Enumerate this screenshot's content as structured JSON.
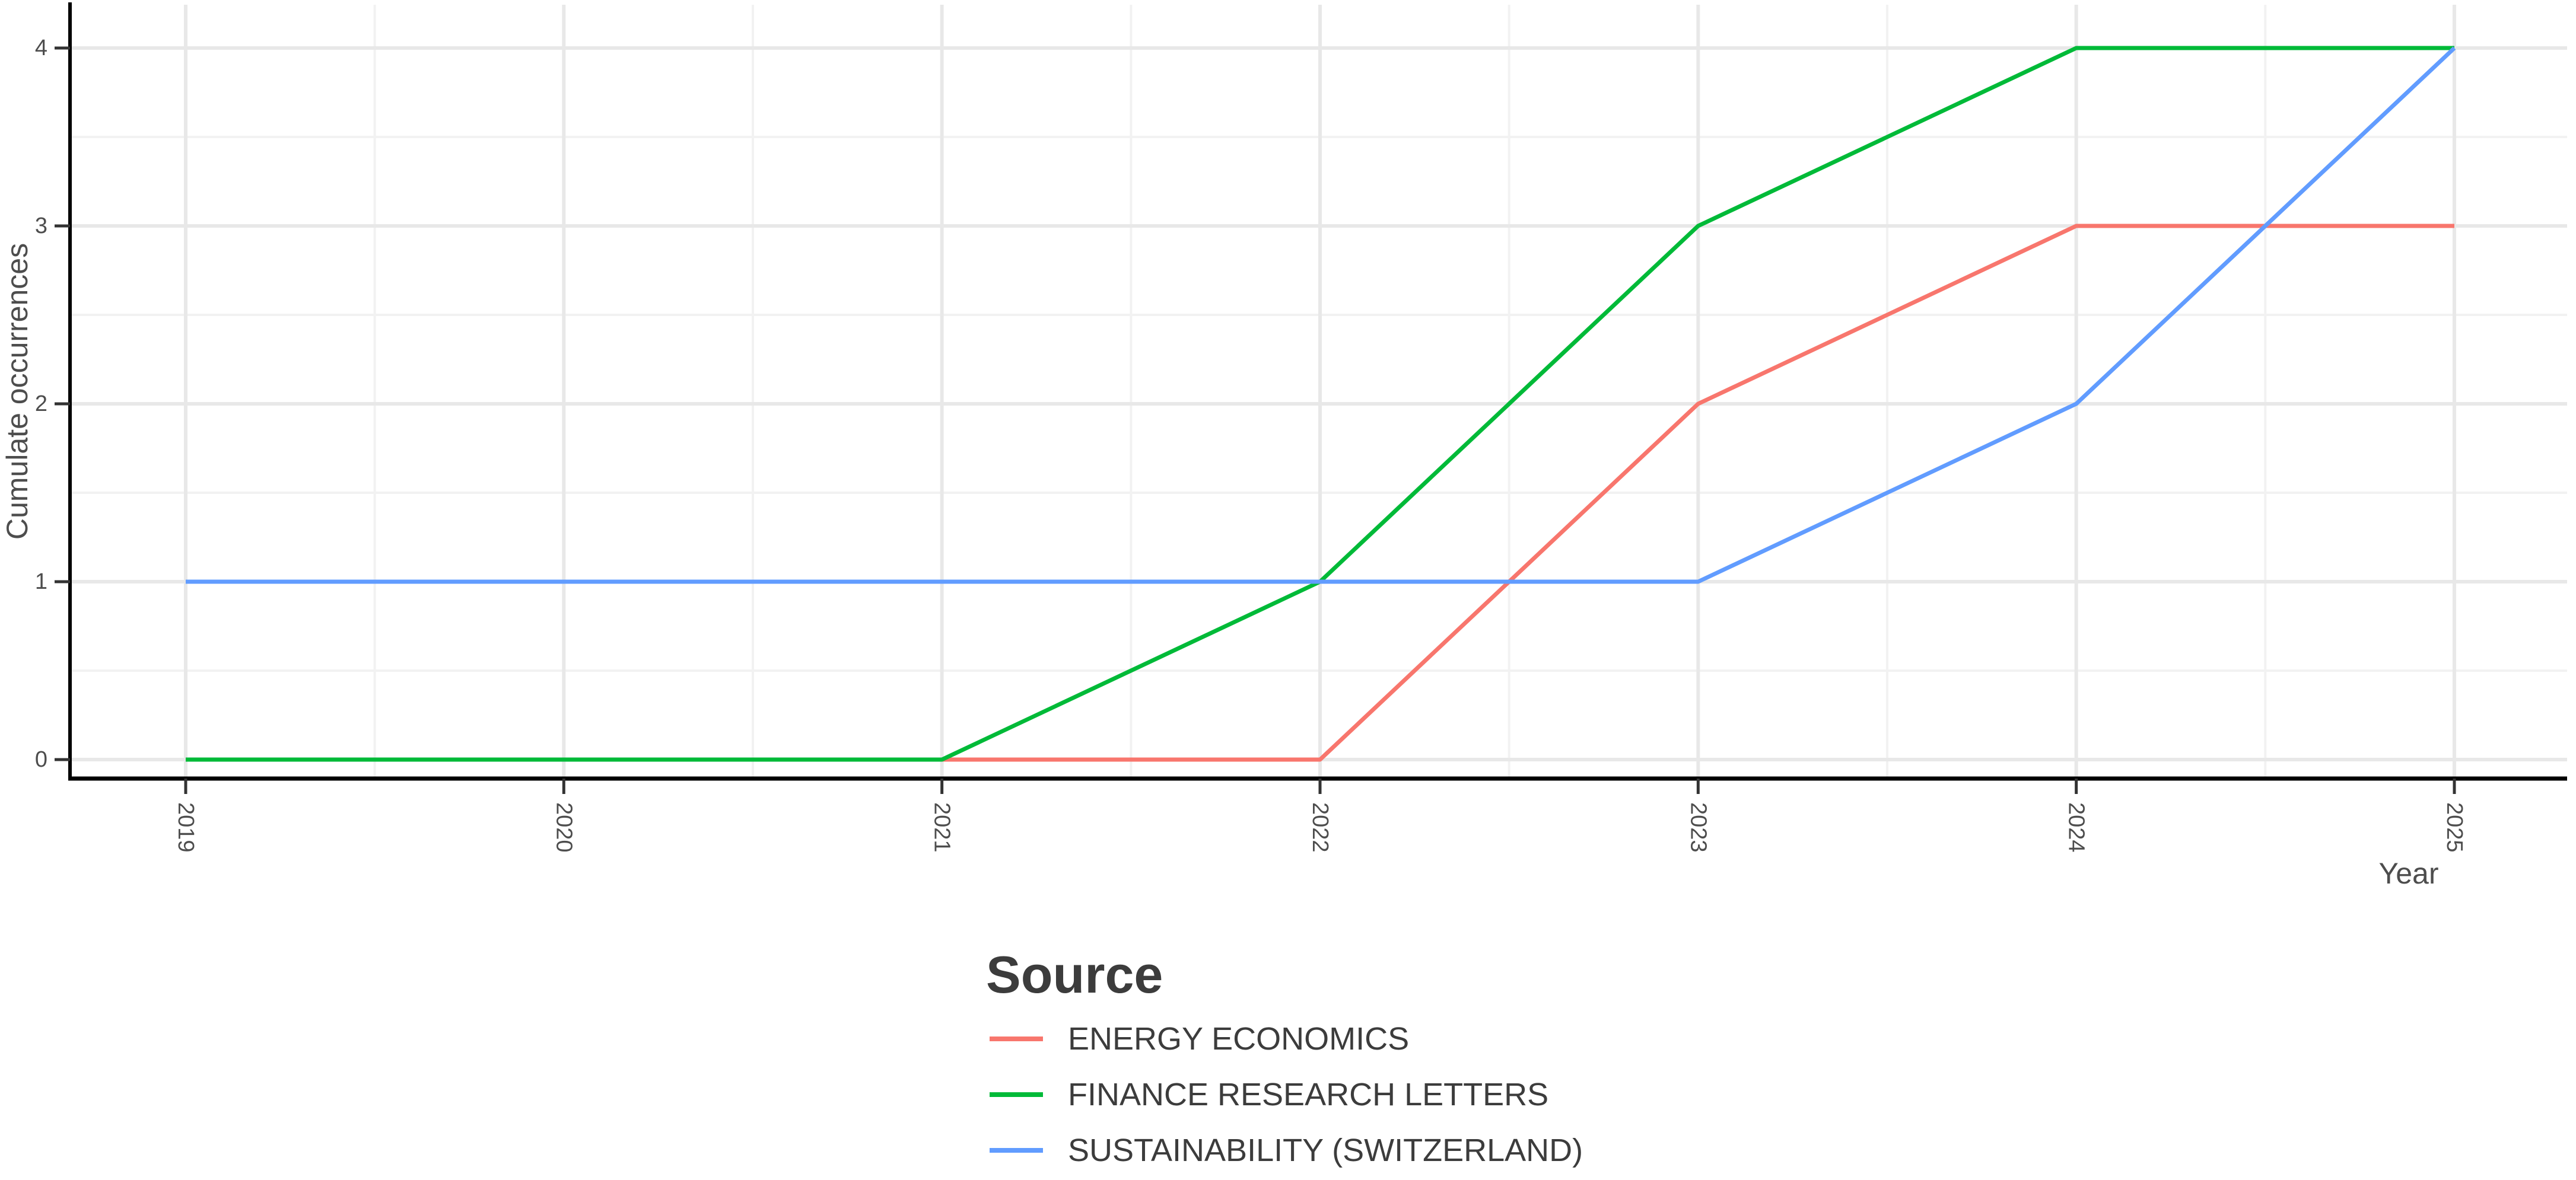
{
  "chart_data": {
    "type": "line",
    "title": "",
    "xlabel": "Year",
    "ylabel": "Cumulate occurrences",
    "x": [
      2019,
      2020,
      2021,
      2022,
      2023,
      2024,
      2025
    ],
    "x_tick_labels": [
      "2019",
      "2020",
      "2021",
      "2022",
      "2023",
      "2024",
      "2025"
    ],
    "y_ticks": [
      0,
      1,
      2,
      3,
      4
    ],
    "ylim": [
      0,
      4
    ],
    "grid": "major gridlines at each year and integer, minor gridlines at midpoints, light gray on white",
    "legend_position": "bottom-left under plot",
    "legend_title": "Source",
    "series": [
      {
        "name": "ENERGY ECONOMICS",
        "color": "#F8766D",
        "values": [
          0,
          0,
          0,
          0,
          2,
          3,
          3
        ]
      },
      {
        "name": "FINANCE RESEARCH LETTERS",
        "color": "#00BA38",
        "values": [
          0,
          0,
          0,
          1,
          3,
          4,
          4
        ]
      },
      {
        "name": "SUSTAINABILITY (SWITZERLAND)",
        "color": "#619CFF",
        "values": [
          1,
          1,
          1,
          1,
          1,
          2,
          4
        ]
      }
    ],
    "style": {
      "background": "#FFFFFF",
      "grid_major_color": "#E8E8E8",
      "grid_minor_color": "#F2F2F2",
      "axis_line_color": "#000000",
      "tick_color": "#333333",
      "tick_label_color": "#4D4D4D",
      "axis_title_color": "#4D4D4D",
      "legend_text_color": "#3C3C3C"
    }
  }
}
